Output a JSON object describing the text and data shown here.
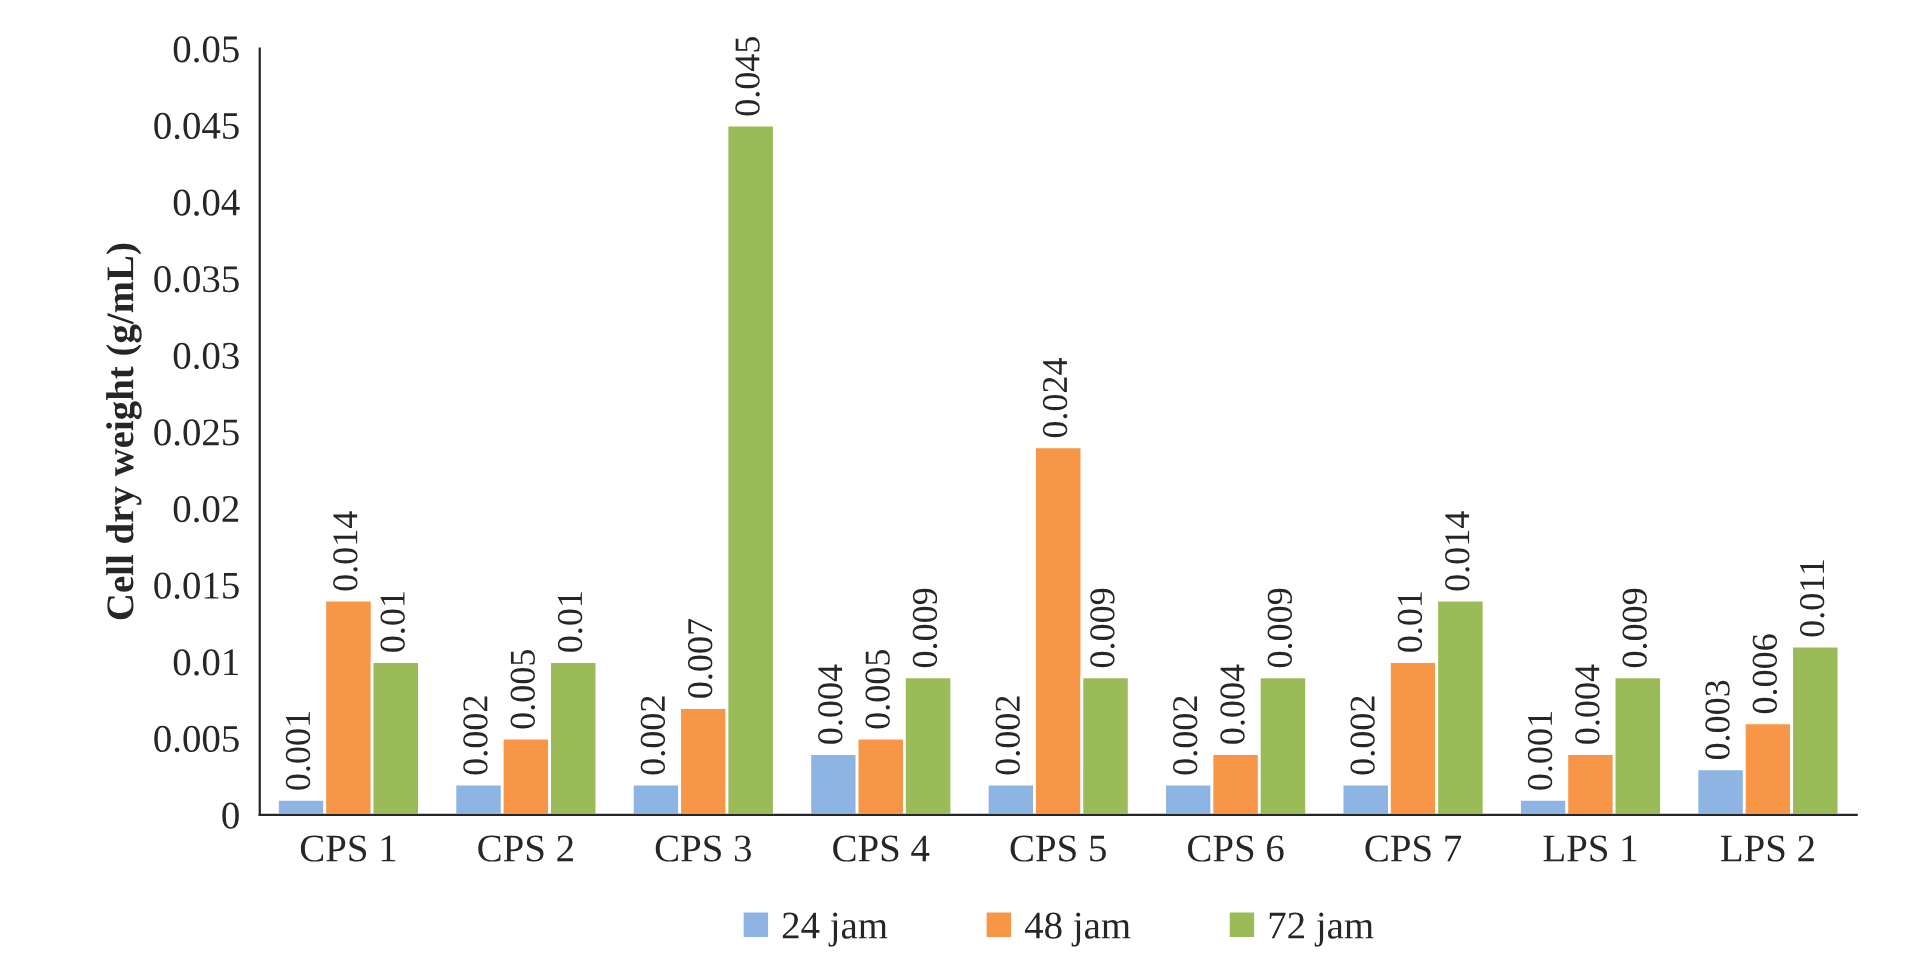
{
  "chart_data": {
    "type": "bar",
    "ylabel": "Cell dry weight (g/mL)",
    "categories": [
      "CPS 1",
      "CPS 2",
      "CPS 3",
      "CPS 4",
      "CPS 5",
      "CPS 6",
      "CPS 7",
      "LPS 1",
      "LPS 2"
    ],
    "series": [
      {
        "name": "24 jam",
        "color": "#8db4e2",
        "values": [
          0.001,
          0.002,
          0.002,
          0.004,
          0.002,
          0.002,
          0.002,
          0.001,
          0.003
        ]
      },
      {
        "name": "48 jam",
        "color": "#f79646",
        "values": [
          0.014,
          0.005,
          0.007,
          0.005,
          0.024,
          0.004,
          0.01,
          0.004,
          0.006
        ]
      },
      {
        "name": "72 jam",
        "color": "#9bbb59",
        "values": [
          0.01,
          0.01,
          0.045,
          0.009,
          0.009,
          0.009,
          0.014,
          0.009,
          0.011
        ]
      }
    ],
    "ylim": [
      0,
      0.05
    ],
    "yticks": [
      0,
      0.005,
      0.01,
      0.015,
      0.02,
      0.025,
      0.03,
      0.035,
      0.04,
      0.045,
      0.05
    ],
    "data_labels": true,
    "legend": "bottom",
    "grid": false
  }
}
